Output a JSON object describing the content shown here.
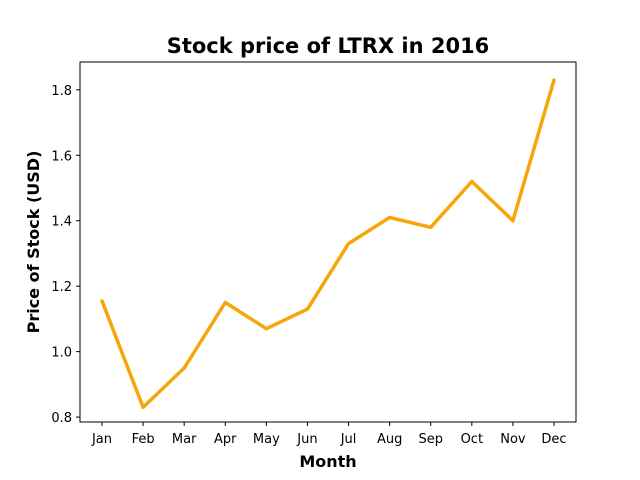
{
  "chart_data": {
    "type": "line",
    "title": "Stock price of LTRX in 2016",
    "xlabel": "Month",
    "ylabel": "Price of Stock (USD)",
    "categories": [
      "Jan",
      "Feb",
      "Mar",
      "Apr",
      "May",
      "Jun",
      "Jul",
      "Aug",
      "Sep",
      "Oct",
      "Nov",
      "Dec"
    ],
    "series": [
      {
        "values": [
          1.155,
          0.83,
          0.95,
          1.15,
          1.07,
          1.13,
          1.33,
          1.41,
          1.38,
          1.52,
          1.4,
          1.83
        ],
        "color": "#f5a70a"
      }
    ],
    "yticks": [
      "0.8",
      "1.0",
      "1.2",
      "1.4",
      "1.6",
      "1.8"
    ],
    "ylim": [
      0.785,
      1.885
    ],
    "grid": false,
    "legend": "none"
  }
}
